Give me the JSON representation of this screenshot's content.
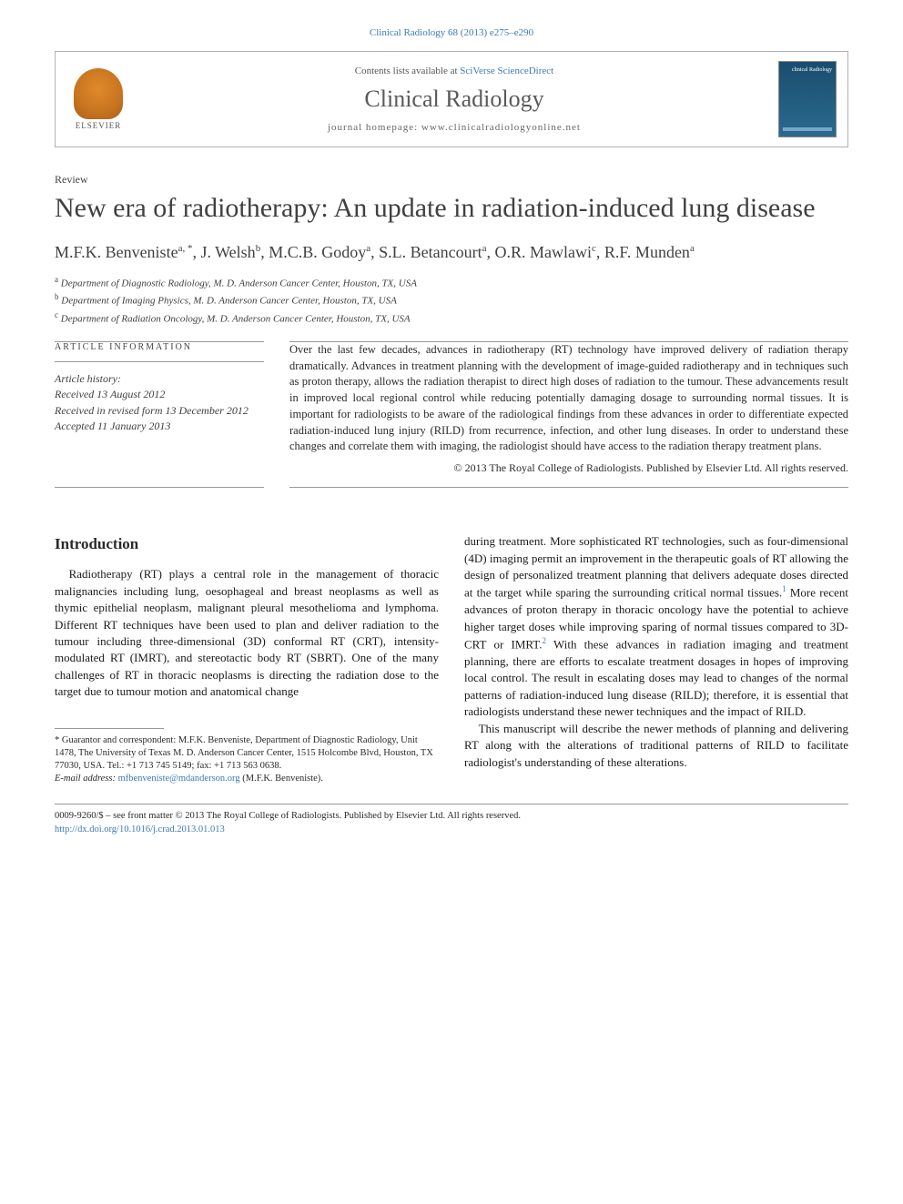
{
  "journal_ref": "Clinical Radiology 68 (2013) e275–e290",
  "header": {
    "elsevier_label": "ELSEVIER",
    "contents_prefix": "Contents lists available at ",
    "contents_link": "SciVerse ScienceDirect",
    "journal_name": "Clinical Radiology",
    "homepage_prefix": "journal homepage: ",
    "homepage_url": "www.clinicalradiologyonline.net",
    "cover_title": "clinical Radiology"
  },
  "article_type": "Review",
  "title": "New era of radiotherapy: An update in radiation-induced lung disease",
  "authors": [
    {
      "name": "M.F.K. Benveniste",
      "aff": "a,",
      "note": "*"
    },
    {
      "name": "J. Welsh",
      "aff": "b"
    },
    {
      "name": "M.C.B. Godoy",
      "aff": "a"
    },
    {
      "name": "S.L. Betancourt",
      "aff": "a"
    },
    {
      "name": "O.R. Mawlawi",
      "aff": "c"
    },
    {
      "name": "R.F. Munden",
      "aff": "a"
    }
  ],
  "affiliations": [
    {
      "sup": "a",
      "text": "Department of Diagnostic Radiology, M. D. Anderson Cancer Center, Houston, TX, USA"
    },
    {
      "sup": "b",
      "text": "Department of Imaging Physics, M. D. Anderson Cancer Center, Houston, TX, USA"
    },
    {
      "sup": "c",
      "text": "Department of Radiation Oncology, M. D. Anderson Cancer Center, Houston, TX, USA"
    }
  ],
  "info": {
    "heading": "ARTICLE INFORMATION",
    "history_label": "Article history:",
    "received": "Received 13 August 2012",
    "revised": "Received in revised form 13 December 2012",
    "accepted": "Accepted 11 January 2013"
  },
  "abstract": "Over the last few decades, advances in radiotherapy (RT) technology have improved delivery of radiation therapy dramatically. Advances in treatment planning with the development of image-guided radiotherapy and in techniques such as proton therapy, allows the radiation therapist to direct high doses of radiation to the tumour. These advancements result in improved local regional control while reducing potentially damaging dosage to surrounding normal tissues. It is important for radiologists to be aware of the radiological findings from these advances in order to differentiate expected radiation-induced lung injury (RILD) from recurrence, infection, and other lung diseases. In order to understand these changes and correlate them with imaging, the radiologist should have access to the radiation therapy treatment plans.",
  "copyright": "© 2013 The Royal College of Radiologists. Published by Elsevier Ltd. All rights reserved.",
  "introduction": {
    "heading": "Introduction",
    "para1_col1": "Radiotherapy (RT) plays a central role in the management of thoracic malignancies including lung, oesophageal and breast neoplasms as well as thymic epithelial neoplasm, malignant pleural mesothelioma and lymphoma. Different RT techniques have been used to plan and deliver radiation to the tumour including three-dimensional (3D) conformal RT (CRT), intensity-modulated RT (IMRT), and stereotactic body RT (SBRT). One of the many challenges of RT in thoracic neoplasms is directing the radiation dose to the target due to tumour motion and anatomical change",
    "para1_col2a": "during treatment. More sophisticated RT technologies, such as four-dimensional (4D) imaging permit an improvement in the therapeutic goals of RT allowing the design of personalized treatment planning that delivers adequate doses directed at the target while sparing the surrounding critical normal tissues.",
    "para1_col2b": " More recent advances of proton therapy in thoracic oncology have the potential to achieve higher target doses while improving sparing of normal tissues compared to 3D-CRT or IMRT.",
    "para1_col2c": " With these advances in radiation imaging and treatment planning, there are efforts to escalate treatment dosages in hopes of improving local control. The result in escalating doses may lead to changes of the normal patterns of radiation-induced lung disease (RILD); therefore, it is essential that radiologists understand these newer techniques and the impact of RILD.",
    "para2": "This manuscript will describe the newer methods of planning and delivering RT along with the alterations of traditional patterns of RILD to facilitate radiologist's understanding of these alterations.",
    "ref1": "1",
    "ref2": "2"
  },
  "footnotes": {
    "correspondent": "* Guarantor and correspondent: M.F.K. Benveniste, Department of Diagnostic Radiology, Unit 1478, The University of Texas M. D. Anderson Cancer Center, 1515 Holcombe Blvd, Houston, TX 77030, USA. Tel.: +1 713 745 5149; fax: +1 713 563 0638.",
    "email_label": "E-mail address: ",
    "email": "mfbenveniste@mdanderson.org",
    "email_suffix": " (M.F.K. Benveniste)."
  },
  "bottom": {
    "line1": "0009-9260/$ – see front matter © 2013 The Royal College of Radiologists. Published by Elsevier Ltd. All rights reserved.",
    "doi": "http://dx.doi.org/10.1016/j.crad.2013.01.013"
  },
  "colors": {
    "link": "#3a7ab5",
    "text": "#1a1a1a",
    "muted": "#404040",
    "border": "#999999",
    "elsevier_orange": "#e08a2a",
    "cover_blue": "#1a4d6e"
  }
}
